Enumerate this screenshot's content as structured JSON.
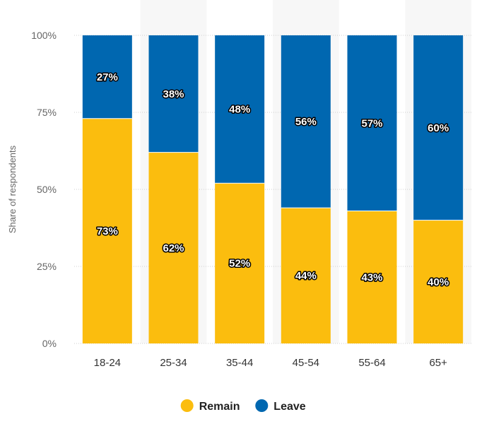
{
  "chart_data": {
    "type": "bar",
    "stacked": true,
    "title": "",
    "xlabel": "",
    "ylabel": "Share of respondents",
    "ylim": [
      0,
      100
    ],
    "yticks": [
      "0%",
      "25%",
      "50%",
      "75%",
      "100%"
    ],
    "ytick_values": [
      0,
      25,
      50,
      75,
      100
    ],
    "grid": true,
    "legend_position": "bottom-center",
    "categories": [
      "18-24",
      "25-34",
      "35-44",
      "45-54",
      "55-64",
      "65+"
    ],
    "series": [
      {
        "name": "Remain",
        "color": "#FBBD0E",
        "values": [
          73,
          62,
          52,
          44,
          43,
          40
        ],
        "labels": [
          "73%",
          "62%",
          "52%",
          "44%",
          "43%",
          "40%"
        ]
      },
      {
        "name": "Leave",
        "color": "#0067B0",
        "values": [
          27,
          38,
          48,
          56,
          57,
          60
        ],
        "labels": [
          "27%",
          "38%",
          "48%",
          "56%",
          "57%",
          "60%"
        ]
      }
    ]
  }
}
